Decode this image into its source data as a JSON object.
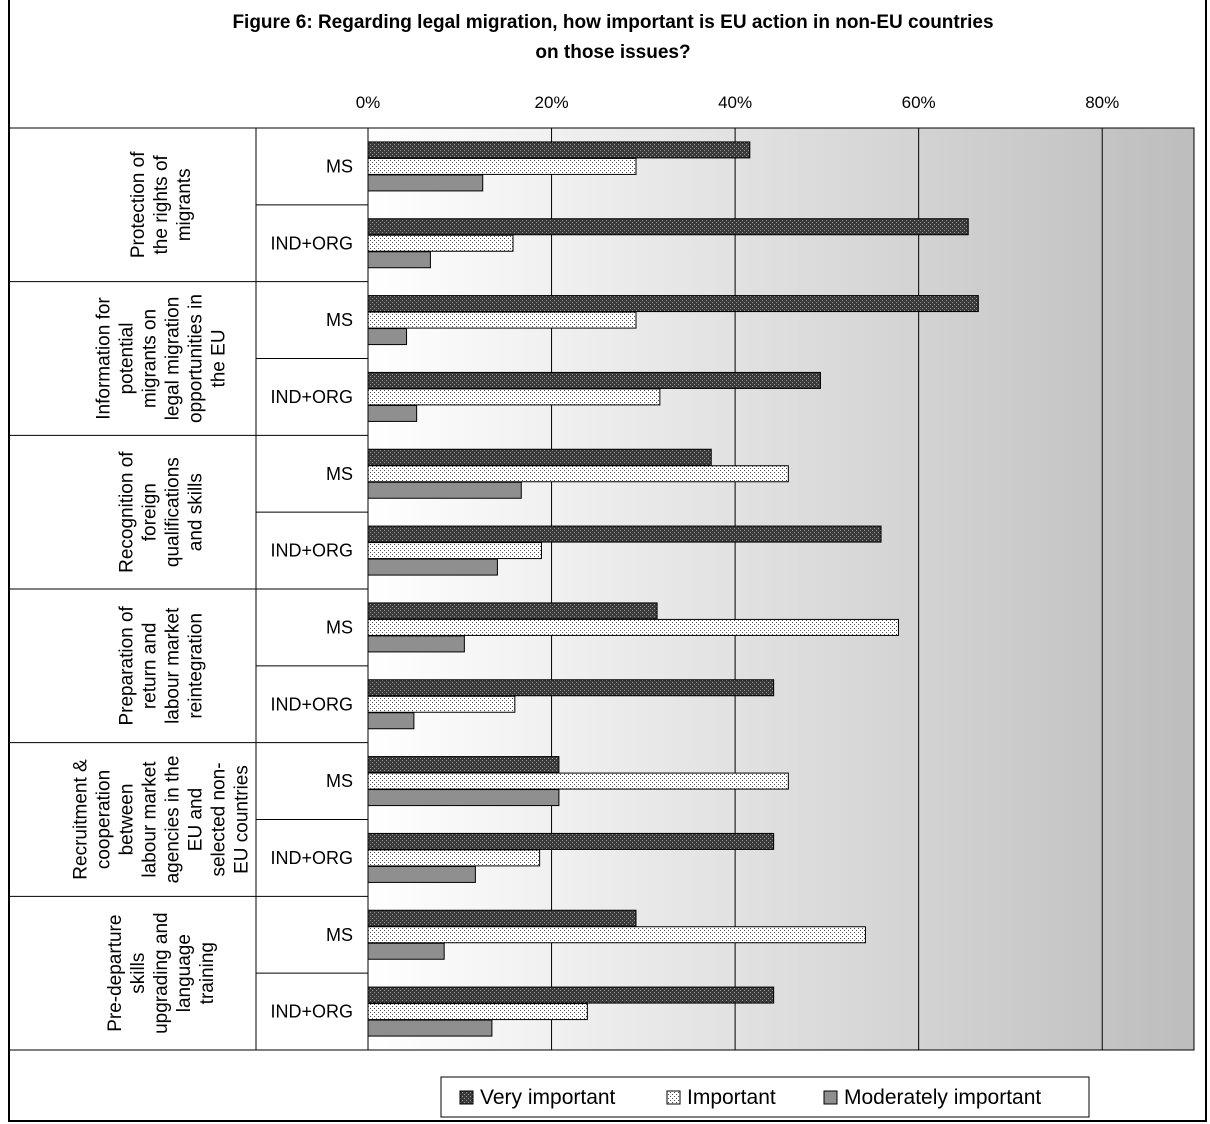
{
  "chart_data": {
    "type": "bar",
    "orientation": "horizontal",
    "title_line1": "Figure 6: Regarding legal migration, how important is EU action in non-EU countries",
    "title_line2": "on those issues?",
    "x_ticks": [
      "0%",
      "20%",
      "40%",
      "60%",
      "80%"
    ],
    "xlim": [
      0,
      90
    ],
    "groups": [
      {
        "lines": [
          "Protection of",
          "the rights of",
          "migrants"
        ]
      },
      {
        "lines": [
          "Information for",
          "potential",
          "migrants on",
          "legal migration",
          "opportunities in",
          "the EU"
        ]
      },
      {
        "lines": [
          "Recognition of",
          "foreign",
          "qualifications",
          "and skills"
        ]
      },
      {
        "lines": [
          "Preparation of",
          "return and",
          "labour market",
          "reintegration"
        ]
      },
      {
        "lines": [
          "Recruitment &",
          "cooperation",
          "between",
          "labour market",
          "agencies in the",
          "EU and",
          "selected non-",
          "EU countries"
        ]
      },
      {
        "lines": [
          "Pre-departure",
          "skills",
          "upgrading and",
          "language",
          "training"
        ]
      }
    ],
    "subgroups": [
      "MS",
      "IND+ORG"
    ],
    "series": [
      {
        "name": "Very important",
        "values": [
          41.6,
          65.4,
          66.5,
          49.3,
          37.4,
          55.9,
          31.5,
          44.2,
          20.8,
          44.2,
          29.2,
          44.2
        ]
      },
      {
        "name": "Important",
        "values": [
          29.2,
          15.8,
          29.2,
          31.8,
          45.8,
          18.9,
          57.8,
          16.0,
          45.8,
          18.7,
          54.2,
          23.9
        ]
      },
      {
        "name": "Moderately important",
        "values": [
          12.5,
          6.8,
          4.2,
          5.3,
          16.7,
          14.1,
          10.5,
          5.0,
          20.8,
          11.7,
          8.3,
          13.5
        ]
      }
    ],
    "legend_position": "bottom",
    "colors": {
      "very": "#3a3a3a",
      "important": "#f2f2f2",
      "moderate": "#8f8f8f"
    }
  }
}
